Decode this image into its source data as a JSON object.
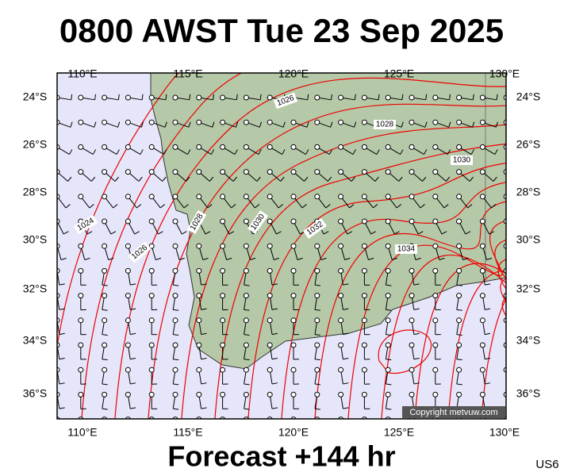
{
  "title": "0800 AWST Tue 23 Sep 2025",
  "lon_labels": [
    "110°E",
    "115°E",
    "120°E",
    "125°E",
    "130°E"
  ],
  "lat_labels": [
    "24°S",
    "26°S",
    "28°S",
    "30°S",
    "32°S",
    "34°S",
    "36°S"
  ],
  "isobar_labels": [
    "1024",
    "1026",
    "1028",
    "1030",
    "1032",
    "1034",
    "1030",
    "1028",
    "1026"
  ],
  "footer": "Forecast +144 hr",
  "copyright": "Copyright metvuw.com",
  "code": "US6"
}
